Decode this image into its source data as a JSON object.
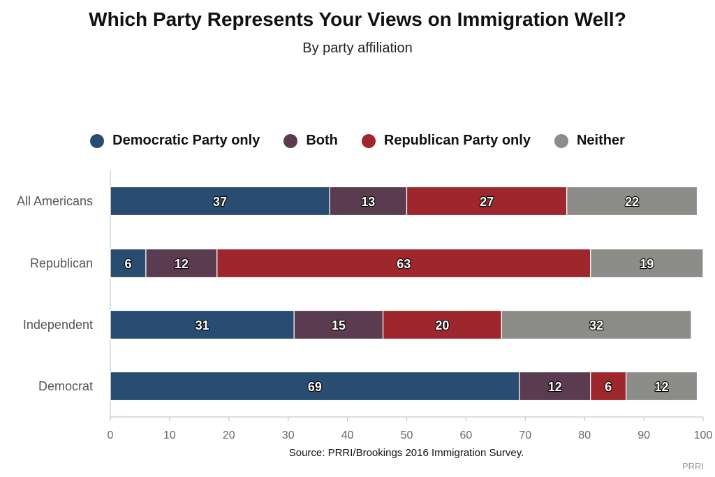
{
  "chart_data": {
    "type": "bar",
    "orientation": "horizontal",
    "stacked": true,
    "title": "Which Party Represents Your Views on Immigration Well?",
    "subtitle": "By party affiliation",
    "categories": [
      "All Americans",
      "Republican",
      "Independent",
      "Democrat"
    ],
    "series": [
      {
        "name": "Democratic Party only",
        "color": "#284d71",
        "values": [
          37,
          6,
          31,
          69
        ]
      },
      {
        "name": "Both",
        "color": "#5a3b50",
        "values": [
          13,
          12,
          15,
          12
        ]
      },
      {
        "name": "Republican Party only",
        "color": "#9e272e",
        "values": [
          27,
          63,
          20,
          6
        ]
      },
      {
        "name": "Neither",
        "color": "#8c8c88",
        "values": [
          22,
          19,
          32,
          12
        ]
      }
    ],
    "xlim": [
      0,
      100
    ],
    "xticks": [
      0,
      10,
      20,
      30,
      40,
      50,
      60,
      70,
      80,
      90,
      100
    ],
    "grid": false,
    "legend_position": "top-center",
    "source": "Source: PRRI/Brookings 2016 Immigration Survey.",
    "credit": "PRRI"
  }
}
